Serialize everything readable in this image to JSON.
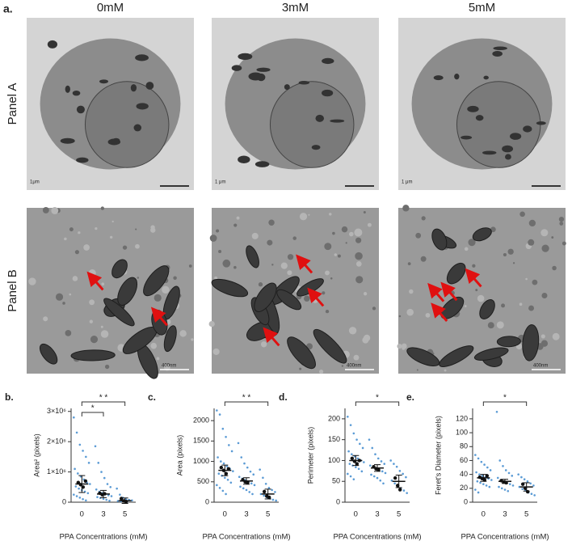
{
  "figure_label": "a.",
  "columns": [
    "0mM",
    "3mM",
    "5mM"
  ],
  "rows": [
    "Panel A",
    "Panel B"
  ],
  "scale_bars": [
    [
      "1μm",
      "1 μm",
      "1 μm"
    ],
    [
      "400nm",
      "400nm",
      "400nm"
    ]
  ],
  "chart_data": [
    {
      "label": "b.",
      "type": "dot",
      "y_label": "Area² (pixels)",
      "x_label": "PPA Concentrations (mM)",
      "categories": [
        "0",
        "3",
        "5"
      ],
      "color": "#5b9bd5",
      "ylim": [
        0,
        3100000
      ],
      "yticks": [
        0,
        {
          "value": 1000000,
          "label": "1×10⁶"
        },
        {
          "value": 2000000,
          "label": "2×10⁶"
        },
        {
          "value": 3000000,
          "label": "3×10⁶"
        }
      ],
      "values": [
        [
          2800000,
          2300000,
          1900000,
          1700000,
          1500000,
          1300000,
          1100000,
          950000,
          850000,
          750000,
          650000,
          600000,
          520000,
          450000,
          400000,
          350000,
          300000,
          250000,
          200000,
          150000,
          100000,
          60000
        ],
        [
          1850000,
          1300000,
          1000000,
          800000,
          600000,
          500000,
          420000,
          350000,
          300000,
          260000,
          230000,
          200000,
          170000,
          140000,
          110000,
          80000,
          50000
        ],
        [
          450000,
          250000,
          150000,
          100000,
          80000,
          60000,
          40000,
          30000,
          20000,
          10000
        ]
      ],
      "replicate_means": [
        [
          650000,
          580000,
          500000,
          700000
        ],
        [
          300000,
          250000,
          280000
        ],
        [
          120000,
          40000,
          20000
        ]
      ],
      "means": [
        600000,
        270000,
        50000
      ],
      "errors": [
        280000,
        120000,
        90000
      ],
      "brackets": [
        {
          "pair": [
            0,
            1
          ],
          "label": "*"
        },
        {
          "pair": [
            0,
            2
          ],
          "label": "* *"
        }
      ]
    },
    {
      "label": "c.",
      "type": "dot",
      "y_label": "Area (pixels)",
      "x_label": "PPA Concentrations (mM)",
      "categories": [
        "0",
        "3",
        "5"
      ],
      "color": "#5b9bd5",
      "ylim": [
        0,
        2300
      ],
      "yticks": [
        0,
        500,
        1000,
        1500,
        2000
      ],
      "values": [
        [
          2250,
          2150,
          1800,
          1600,
          1400,
          1250,
          1100,
          1000,
          950,
          880,
          820,
          760,
          700,
          650,
          600,
          550,
          480,
          420,
          350,
          280,
          200
        ],
        [
          1450,
          1100,
          950,
          850,
          750,
          680,
          620,
          580,
          540,
          500,
          460,
          420,
          380,
          340,
          300,
          250,
          200
        ],
        [
          800,
          600,
          450,
          350,
          300,
          250,
          200,
          160,
          120,
          90,
          60,
          40
        ]
      ],
      "replicate_means": [
        [
          850,
          780,
          700,
          820
        ],
        [
          550,
          500,
          480
        ],
        [
          260,
          150,
          120
        ]
      ],
      "means": [
        780,
        520,
        200
      ],
      "errors": [
        130,
        80,
        120
      ],
      "brackets": [
        {
          "pair": [
            0,
            2
          ],
          "label": "* *"
        }
      ]
    },
    {
      "label": "d.",
      "type": "dot",
      "y_label": "Perimeter (pixels)",
      "x_label": "PPA Concentrations (mM)",
      "categories": [
        "0",
        "3",
        "5"
      ],
      "color": "#5b9bd5",
      "ylim": [
        0,
        225
      ],
      "yticks": [
        0,
        50,
        100,
        150,
        200
      ],
      "values": [
        [
          205,
          185,
          165,
          150,
          140,
          130,
          122,
          115,
          110,
          105,
          100,
          96,
          92,
          88,
          84,
          80,
          74,
          68,
          62,
          55
        ],
        [
          150,
          130,
          115,
          105,
          98,
          92,
          88,
          84,
          80,
          77,
          74,
          70,
          66,
          62,
          58,
          52,
          45
        ],
        [
          100,
          92,
          85,
          75,
          68,
          60,
          52,
          45,
          38,
          32,
          28,
          22
        ]
      ],
      "replicate_means": [
        [
          105,
          98,
          92,
          100
        ],
        [
          85,
          80,
          78
        ],
        [
          58,
          40,
          30
        ]
      ],
      "means": [
        100,
        82,
        50
      ],
      "errors": [
        12,
        8,
        15
      ],
      "brackets": [
        {
          "pair": [
            0,
            2
          ],
          "label": "*"
        }
      ]
    },
    {
      "label": "e.",
      "type": "dot",
      "y_label": "Feret's Diameter (pixels)",
      "x_label": "PPA Concentrations (mM)",
      "categories": [
        "0",
        "3",
        "5"
      ],
      "color": "#5b9bd5",
      "ylim": [
        0,
        135
      ],
      "yticks": [
        0,
        20,
        40,
        60,
        80,
        100,
        120
      ],
      "values": [
        [
          68,
          63,
          58,
          54,
          50,
          46,
          43,
          40,
          38,
          36,
          34,
          32,
          30,
          28,
          26,
          24,
          22,
          18,
          14
        ],
        [
          130,
          60,
          52,
          46,
          42,
          38,
          35,
          32,
          30,
          28,
          26,
          24,
          22,
          20,
          18,
          16
        ],
        [
          40,
          36,
          33,
          30,
          27,
          24,
          22,
          19,
          17,
          14,
          12,
          10
        ]
      ],
      "replicate_means": [
        [
          36,
          34,
          32,
          38
        ],
        [
          31,
          29,
          28
        ],
        [
          26,
          20,
          15
        ]
      ],
      "means": [
        35,
        30,
        22
      ],
      "errors": [
        5,
        3,
        6
      ],
      "brackets": [
        {
          "pair": [
            0,
            2
          ],
          "label": "*"
        }
      ]
    }
  ]
}
